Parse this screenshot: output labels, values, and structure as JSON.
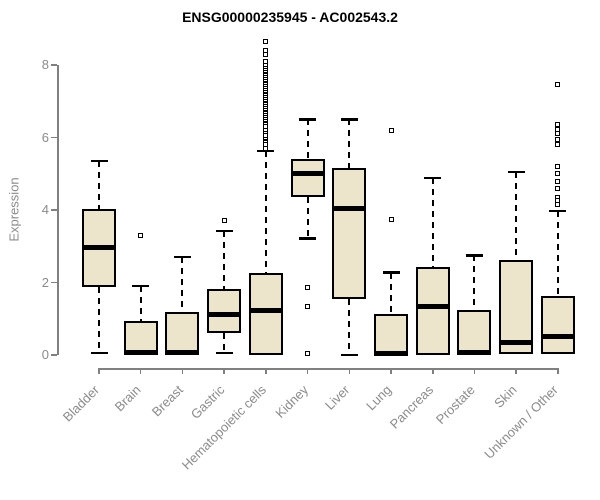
{
  "chart_data": {
    "type": "boxplot",
    "title": "ENSG00000235945 - AC002543.2",
    "ylabel": "Expression",
    "xlabel": "",
    "ylim": [
      0,
      8.7
    ],
    "yticks": [
      0,
      2,
      4,
      6,
      8
    ],
    "grid": false,
    "legend": null,
    "categories": [
      "Bladder",
      "Brain",
      "Breast",
      "Gastric",
      "Hematopoietic cells",
      "Kidney",
      "Liver",
      "Lung",
      "Pancreas",
      "Prostate",
      "Skin",
      "Unknown / Other"
    ],
    "boxes": [
      {
        "category": "Bladder",
        "whisker_low": 0.05,
        "q1": 1.88,
        "median": 2.97,
        "q3": 4.02,
        "whisker_high": 5.35,
        "outliers": []
      },
      {
        "category": "Brain",
        "whisker_low": 0.0,
        "q1": 0.0,
        "median": 0.07,
        "q3": 0.95,
        "whisker_high": 1.9,
        "outliers": [
          3.3
        ]
      },
      {
        "category": "Breast",
        "whisker_low": 0.0,
        "q1": 0.0,
        "median": 0.07,
        "q3": 1.18,
        "whisker_high": 2.7,
        "outliers": []
      },
      {
        "category": "Gastric",
        "whisker_low": 0.06,
        "q1": 0.62,
        "median": 1.13,
        "q3": 1.81,
        "whisker_high": 3.42,
        "outliers": [
          3.7
        ]
      },
      {
        "category": "Hematopoietic cells",
        "whisker_low": 0.0,
        "q1": 0.0,
        "median": 1.24,
        "q3": 2.27,
        "whisker_high": 5.63,
        "outliers": [
          8.65,
          8.4,
          8.3,
          8.1,
          8.0,
          7.9,
          7.85,
          7.8,
          7.75,
          7.7,
          7.65,
          7.6,
          7.55,
          7.5,
          7.45,
          7.4,
          7.35,
          7.3,
          7.25,
          7.2,
          7.15,
          7.1,
          7.05,
          7.0,
          6.95,
          6.9,
          6.85,
          6.8,
          6.75,
          6.7,
          6.65,
          6.6,
          6.55,
          6.5,
          6.45,
          6.4,
          6.35,
          6.3,
          6.2,
          6.1,
          6.05,
          5.95,
          5.9,
          5.85,
          5.8,
          5.7
        ]
      },
      {
        "category": "Kidney",
        "whisker_low": 3.22,
        "q1": 4.35,
        "median": 5.02,
        "q3": 5.42,
        "whisker_high": 6.5,
        "outliers": [
          1.87,
          1.33,
          0.03
        ]
      },
      {
        "category": "Liver",
        "whisker_low": 0.0,
        "q1": 1.54,
        "median": 4.05,
        "q3": 5.15,
        "whisker_high": 6.5,
        "outliers": []
      },
      {
        "category": "Lung",
        "whisker_low": 0.0,
        "q1": 0.0,
        "median": 0.05,
        "q3": 1.12,
        "whisker_high": 2.27,
        "outliers": [
          6.2,
          3.75
        ]
      },
      {
        "category": "Pancreas",
        "whisker_low": 0.0,
        "q1": 0.0,
        "median": 1.35,
        "q3": 2.43,
        "whisker_high": 4.88,
        "outliers": []
      },
      {
        "category": "Prostate",
        "whisker_low": 0.0,
        "q1": 0.0,
        "median": 0.06,
        "q3": 1.24,
        "whisker_high": 2.75,
        "outliers": []
      },
      {
        "category": "Skin",
        "whisker_low": 0.04,
        "q1": 0.04,
        "median": 0.35,
        "q3": 2.62,
        "whisker_high": 5.05,
        "outliers": []
      },
      {
        "category": "Unknown / Other",
        "whisker_low": 0.04,
        "q1": 0.04,
        "median": 0.5,
        "q3": 1.63,
        "whisker_high": 3.97,
        "outliers": [
          7.45,
          6.35,
          6.22,
          6.1,
          5.95,
          5.8,
          5.2,
          5.0,
          4.8,
          4.6,
          4.35,
          4.25,
          4.15
        ]
      }
    ],
    "colors": {
      "box_fill": "#ece5cb",
      "box_border": "#000000",
      "median": "#000000",
      "whisker": "#000000",
      "axis": "#808080",
      "tick_text": "#8b8b8b",
      "title_text": "#000000"
    }
  }
}
